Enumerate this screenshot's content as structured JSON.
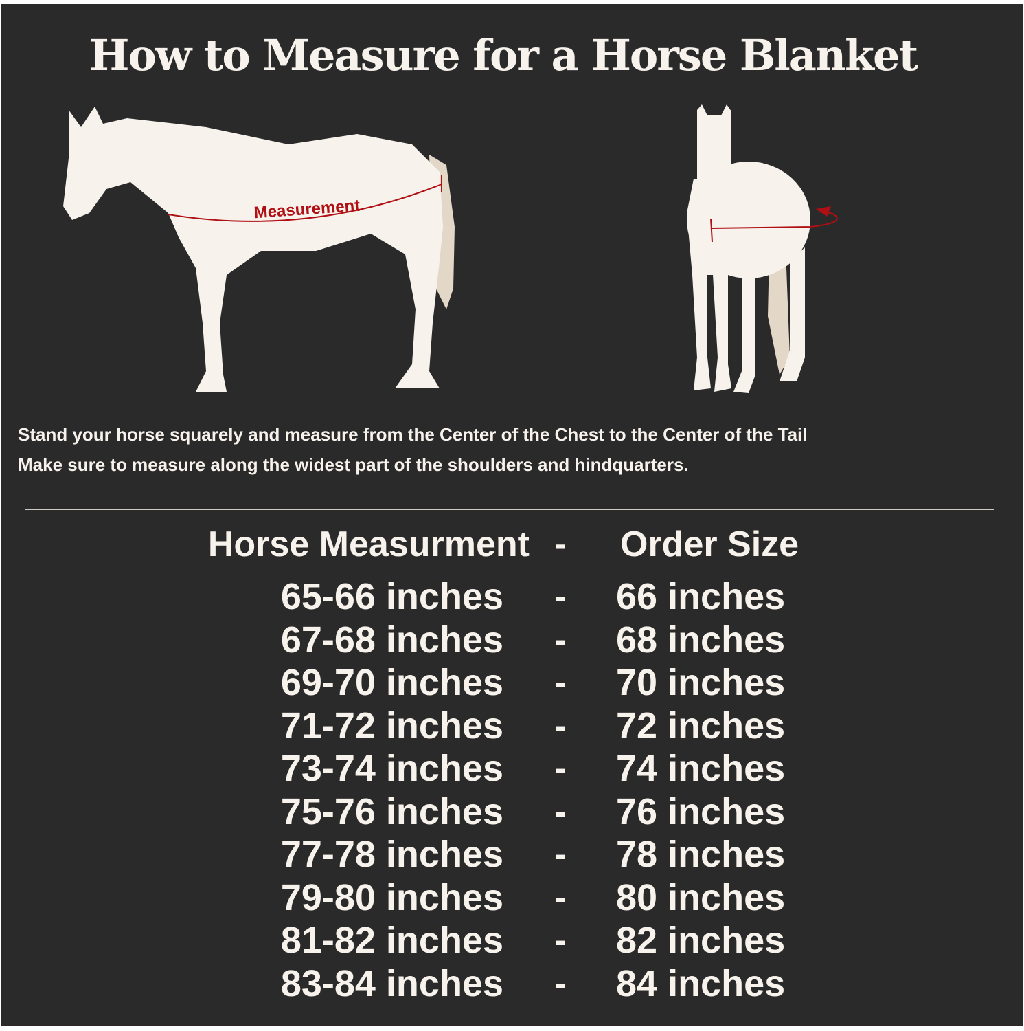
{
  "title": "How to Measure for a Horse Blanket",
  "diagram": {
    "measurement_label": "Measurement",
    "colors": {
      "background": "#2b2a2b",
      "horse": "#f7f3ec",
      "tail": "#e3d7c8",
      "measure_line": "#b00f14"
    },
    "icons": [
      "horse-side-view",
      "horse-front-view",
      "measurement-arrow"
    ]
  },
  "instructions": [
    "Stand your horse squarely and measure from the Center of the Chest to the Center of the Tail",
    "Make sure to measure along the widest part of the shoulders and hindquarters."
  ],
  "size_table": {
    "headers": {
      "measurement": "Horse Measurment",
      "separator": "-",
      "size": "Order Size"
    },
    "rows": [
      {
        "measurement": "65-66 inches",
        "separator": "-",
        "size": "66 inches"
      },
      {
        "measurement": "67-68 inches",
        "separator": "-",
        "size": "68 inches"
      },
      {
        "measurement": "69-70 inches",
        "separator": "-",
        "size": "70 inches"
      },
      {
        "measurement": "71-72 inches",
        "separator": "-",
        "size": "72 inches"
      },
      {
        "measurement": "73-74 inches",
        "separator": "-",
        "size": "74 inches"
      },
      {
        "measurement": "75-76 inches",
        "separator": "-",
        "size": "76 inches"
      },
      {
        "measurement": "77-78 inches",
        "separator": "-",
        "size": "78 inches"
      },
      {
        "measurement": "79-80 inches",
        "separator": "-",
        "size": "80 inches"
      },
      {
        "measurement": "81-82 inches",
        "separator": "-",
        "size": "82 inches"
      },
      {
        "measurement": "83-84 inches",
        "separator": "-",
        "size": "84 inches"
      }
    ]
  }
}
